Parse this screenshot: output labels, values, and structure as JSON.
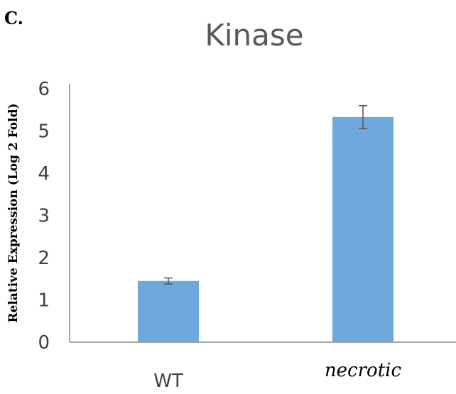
{
  "panel_label": "C.",
  "chart_data": {
    "type": "bar",
    "title": "Kinase",
    "ylabel": "Relative Expression (Log 2 Fold)",
    "xlabel": "",
    "categories": [
      "WT",
      "necrotic"
    ],
    "category_italic": [
      false,
      true
    ],
    "values": [
      1.45,
      5.33
    ],
    "errors": [
      0.07,
      0.27
    ],
    "ylim": [
      0,
      6
    ],
    "yticks": [
      "0",
      "1",
      "2",
      "3",
      "4",
      "5",
      "6"
    ],
    "grid": false,
    "bar_color": "#6ea8dc"
  }
}
